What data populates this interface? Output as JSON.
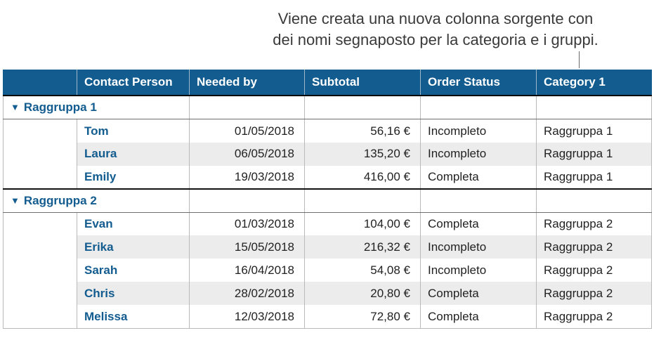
{
  "caption": {
    "text": "Viene creata una nuova colonna sorgente con dei nomi segnaposto per la categoria e i gruppi.",
    "font_size_pt": 17,
    "color": "#3a3a3a"
  },
  "table": {
    "header_bg": "#135c8f",
    "header_fg": "#ffffff",
    "link_color": "#135c8f",
    "alt_row_bg": "#ececec",
    "border_color": "#b9b9b9",
    "columns": [
      {
        "label": ""
      },
      {
        "label": "Contact Person"
      },
      {
        "label": "Needed by"
      },
      {
        "label": "Subtotal"
      },
      {
        "label": "Order Status"
      },
      {
        "label": "Category 1"
      }
    ],
    "groups": [
      {
        "name": "Raggruppa 1",
        "rows": [
          {
            "contact": "Tom",
            "needed_by": "01/05/2018",
            "subtotal": "56,16 €",
            "status": "Incompleto",
            "category": "Raggruppa 1",
            "alt": false
          },
          {
            "contact": "Laura",
            "needed_by": "06/05/2018",
            "subtotal": "135,20 €",
            "status": "Incompleto",
            "category": "Raggruppa 1",
            "alt": true
          },
          {
            "contact": "Emily",
            "needed_by": "19/03/2018",
            "subtotal": "416,00 €",
            "status": "Completa",
            "category": "Raggruppa 1",
            "alt": false
          }
        ]
      },
      {
        "name": "Raggruppa 2",
        "rows": [
          {
            "contact": "Evan",
            "needed_by": "01/03/2018",
            "subtotal": "104,00 €",
            "status": "Completa",
            "category": "Raggruppa 2",
            "alt": false
          },
          {
            "contact": "Erika",
            "needed_by": "15/05/2018",
            "subtotal": "216,32 €",
            "status": "Incompleto",
            "category": "Raggruppa 2",
            "alt": true
          },
          {
            "contact": "Sarah",
            "needed_by": "16/04/2018",
            "subtotal": "54,08 €",
            "status": "Incompleto",
            "category": "Raggruppa 2",
            "alt": false
          },
          {
            "contact": "Chris",
            "needed_by": "28/02/2018",
            "subtotal": "20,80 €",
            "status": "Completa",
            "category": "Raggruppa 2",
            "alt": true
          },
          {
            "contact": "Melissa",
            "needed_by": "12/03/2018",
            "subtotal": "72,80 €",
            "status": "Completa",
            "category": "Raggruppa 2",
            "alt": false
          }
        ]
      }
    ]
  }
}
